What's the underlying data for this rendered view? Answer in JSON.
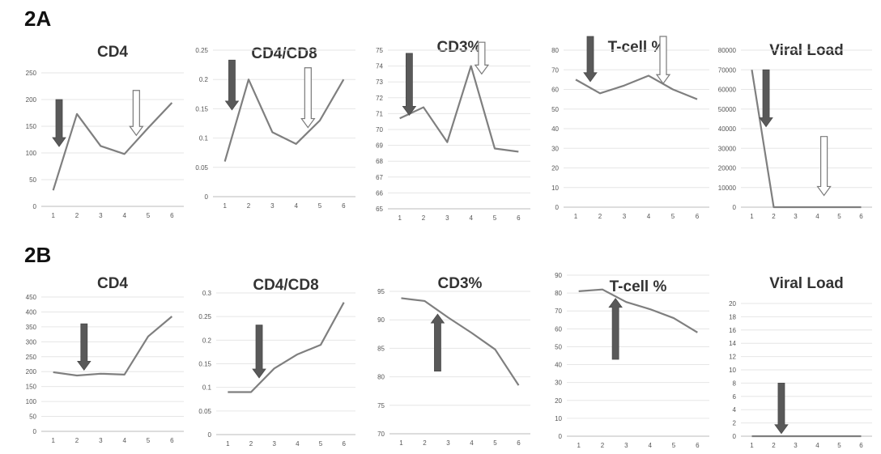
{
  "panels": [
    {
      "label": "2A"
    },
    {
      "label": "2B"
    }
  ],
  "chart_data": [
    {
      "panel": "2A",
      "type": "line",
      "title": "CD4",
      "x": [
        1,
        2,
        3,
        4,
        5,
        6
      ],
      "values": [
        30,
        173,
        113,
        98,
        147,
        194
      ],
      "ylim": [
        0,
        250
      ],
      "yticks": [
        0,
        50,
        100,
        150,
        200,
        250
      ],
      "arrows": [
        {
          "kind": "solid",
          "direction": "down",
          "x": 1.25,
          "from": 200,
          "to": 112
        },
        {
          "kind": "hollow",
          "direction": "down",
          "x": 4.5,
          "from": 217,
          "to": 133
        }
      ]
    },
    {
      "panel": "2A",
      "type": "line",
      "title": "CD4/CD8",
      "x": [
        1,
        2,
        3,
        4,
        5,
        6
      ],
      "values": [
        0.06,
        0.2,
        0.11,
        0.09,
        0.13,
        0.2
      ],
      "ylim": [
        0,
        0.25
      ],
      "yticks": [
        "0",
        "0.05",
        "0.1",
        "0.15",
        "0.2",
        "0.25"
      ],
      "arrows": [
        {
          "kind": "solid",
          "direction": "down",
          "x": 1.3,
          "from": 0.233,
          "to": 0.148
        },
        {
          "kind": "hollow",
          "direction": "down",
          "x": 4.5,
          "from": 0.22,
          "to": 0.118
        }
      ]
    },
    {
      "panel": "2A",
      "type": "line",
      "title": "CD3%",
      "x": [
        1,
        2,
        3,
        4,
        5,
        6
      ],
      "values": [
        70.7,
        71.4,
        69.2,
        74.0,
        68.8,
        68.6
      ],
      "ylim": [
        65,
        75
      ],
      "yticks": [
        65,
        66,
        67,
        68,
        69,
        70,
        71,
        72,
        73,
        74,
        75
      ],
      "arrows": [
        {
          "kind": "solid",
          "direction": "down",
          "x": 1.4,
          "from": 74.8,
          "to": 70.9
        },
        {
          "kind": "hollow",
          "direction": "down",
          "x": 4.45,
          "from": 75.5,
          "to": 73.5
        }
      ]
    },
    {
      "panel": "2A",
      "type": "line",
      "title": "T-cell %",
      "x": [
        1,
        2,
        3,
        4,
        5,
        6
      ],
      "values": [
        65,
        58,
        62,
        67,
        60,
        55
      ],
      "ylim": [
        0,
        80
      ],
      "yticks": [
        0,
        10,
        20,
        30,
        40,
        50,
        60,
        70,
        80
      ],
      "arrows": [
        {
          "kind": "solid",
          "direction": "down",
          "x": 1.6,
          "from": 87,
          "to": 64
        },
        {
          "kind": "hollow",
          "direction": "down",
          "x": 4.6,
          "from": 87,
          "to": 63
        }
      ]
    },
    {
      "panel": "2A",
      "type": "line",
      "title": "Viral Load",
      "x": [
        1,
        2,
        3,
        4,
        5,
        6
      ],
      "values": [
        70000,
        0,
        0,
        0,
        0,
        0
      ],
      "ylim": [
        0,
        80000
      ],
      "yticks": [
        0,
        10000,
        20000,
        30000,
        40000,
        50000,
        60000,
        70000,
        80000
      ],
      "arrows": [
        {
          "kind": "solid",
          "direction": "down",
          "x": 1.65,
          "from": 70000,
          "to": 41000
        },
        {
          "kind": "hollow",
          "direction": "down",
          "x": 4.3,
          "from": 36000,
          "to": 6000
        }
      ]
    },
    {
      "panel": "2B",
      "type": "line",
      "title": "CD4",
      "x": [
        1,
        2,
        3,
        4,
        5,
        6
      ],
      "values": [
        198,
        187,
        193,
        190,
        318,
        385
      ],
      "ylim": [
        0,
        450
      ],
      "yticks": [
        0,
        50,
        100,
        150,
        200,
        250,
        300,
        350,
        400,
        450
      ],
      "arrows": [
        {
          "kind": "solid",
          "direction": "down",
          "x": 2.3,
          "from": 360,
          "to": 205
        }
      ]
    },
    {
      "panel": "2B",
      "type": "line",
      "title": "CD4/CD8",
      "x": [
        1,
        2,
        3,
        4,
        5,
        6
      ],
      "values": [
        0.09,
        0.09,
        0.14,
        0.17,
        0.19,
        0.28
      ],
      "ylim": [
        0,
        0.3
      ],
      "yticks": [
        "0",
        "0.05",
        "0.1",
        "0.15",
        "0.2",
        "0.25",
        "0.3"
      ],
      "arrows": [
        {
          "kind": "solid",
          "direction": "down",
          "x": 2.35,
          "from": 0.232,
          "to": 0.12
        }
      ]
    },
    {
      "panel": "2B",
      "type": "line",
      "title": "CD3%",
      "x": [
        1,
        2,
        3,
        4,
        5,
        6
      ],
      "values": [
        93.8,
        93.3,
        90.4,
        87.7,
        84.8,
        78.5
      ],
      "ylim": [
        70,
        95
      ],
      "yticks": [
        70,
        75,
        80,
        85,
        90,
        95
      ],
      "arrows": [
        {
          "kind": "solid",
          "direction": "up",
          "x": 2.55,
          "from": 81,
          "to": 91
        }
      ]
    },
    {
      "panel": "2B",
      "type": "line",
      "title": "T-cell %",
      "x": [
        1,
        2,
        3,
        4,
        5,
        6
      ],
      "values": [
        81,
        82,
        75,
        71,
        66,
        58
      ],
      "ylim": [
        0,
        90
      ],
      "yticks": [
        0,
        10,
        20,
        30,
        40,
        50,
        60,
        70,
        80,
        90
      ],
      "arrows": [
        {
          "kind": "solid",
          "direction": "up",
          "x": 2.55,
          "from": 43,
          "to": 77
        }
      ]
    },
    {
      "panel": "2B",
      "type": "line",
      "title": "Viral Load",
      "x": [
        1,
        2,
        3,
        4,
        5,
        6
      ],
      "values": [
        0,
        0,
        0,
        0,
        0,
        0
      ],
      "ylim": [
        0,
        20
      ],
      "yticks": [
        0,
        2,
        4,
        6,
        8,
        10,
        12,
        14,
        16,
        18,
        20
      ],
      "arrows": [
        {
          "kind": "solid",
          "direction": "down",
          "x": 2.35,
          "from": 8,
          "to": 0.4
        }
      ]
    }
  ]
}
